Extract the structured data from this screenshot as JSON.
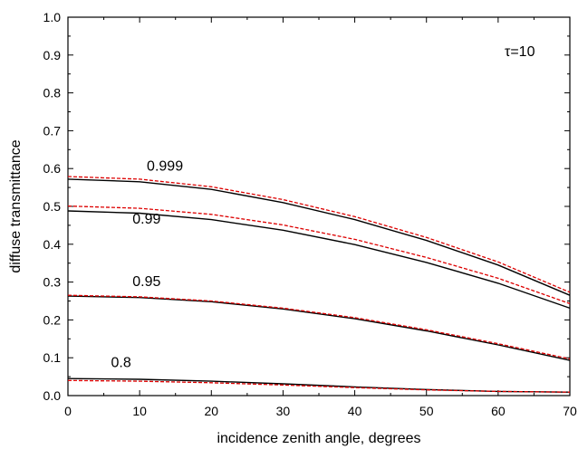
{
  "chart_data": {
    "type": "line",
    "xlabel": "incidence zenith angle, degrees",
    "ylabel": "diffuse transmittance",
    "xlim": [
      0,
      70
    ],
    "ylim": [
      0.0,
      1.0
    ],
    "x_ticks": [
      0,
      10,
      20,
      30,
      40,
      50,
      60,
      70
    ],
    "y_ticks": [
      0.0,
      0.1,
      0.2,
      0.3,
      0.4,
      0.5,
      0.6,
      0.7,
      0.8,
      0.9,
      1.0
    ],
    "x_tick_labels": [
      "0",
      "10",
      "20",
      "30",
      "40",
      "50",
      "60",
      "70"
    ],
    "y_tick_labels": [
      "0.0",
      "0.1",
      "0.2",
      "0.3",
      "0.4",
      "0.5",
      "0.6",
      "0.7",
      "0.8",
      "0.9",
      "1.0"
    ],
    "annotation": "τ=10",
    "grid": false,
    "curve_labels": [
      {
        "text": "0.999",
        "x": 11,
        "y": 0.595
      },
      {
        "text": "0.99",
        "x": 9,
        "y": 0.455
      },
      {
        "text": "0.95",
        "x": 9,
        "y": 0.29
      },
      {
        "text": "0.8",
        "x": 6,
        "y": 0.075
      }
    ],
    "x": [
      0,
      10,
      20,
      30,
      40,
      50,
      60,
      70
    ],
    "series": [
      {
        "color": "#000000",
        "dash": "solid",
        "values": [
          0.572,
          0.565,
          0.545,
          0.51,
          0.465,
          0.41,
          0.345,
          0.265
        ]
      },
      {
        "color": "#dd0000",
        "dash": "dashed",
        "values": [
          0.579,
          0.572,
          0.552,
          0.518,
          0.473,
          0.418,
          0.353,
          0.273
        ]
      },
      {
        "color": "#000000",
        "dash": "solid",
        "values": [
          0.488,
          0.482,
          0.465,
          0.437,
          0.399,
          0.352,
          0.297,
          0.231
        ]
      },
      {
        "color": "#dd0000",
        "dash": "dashed",
        "values": [
          0.501,
          0.495,
          0.479,
          0.451,
          0.413,
          0.365,
          0.31,
          0.243
        ]
      },
      {
        "color": "#000000",
        "dash": "solid",
        "values": [
          0.263,
          0.259,
          0.248,
          0.229,
          0.203,
          0.171,
          0.134,
          0.093
        ]
      },
      {
        "color": "#dd0000",
        "dash": "dashed",
        "values": [
          0.265,
          0.261,
          0.25,
          0.231,
          0.206,
          0.174,
          0.137,
          0.097
        ]
      },
      {
        "color": "#000000",
        "dash": "solid",
        "values": [
          0.045,
          0.043,
          0.038,
          0.031,
          0.023,
          0.016,
          0.011,
          0.009
        ]
      },
      {
        "color": "#dd0000",
        "dash": "dashed",
        "values": [
          0.04,
          0.038,
          0.034,
          0.028,
          0.021,
          0.015,
          0.011,
          0.009
        ]
      }
    ]
  }
}
